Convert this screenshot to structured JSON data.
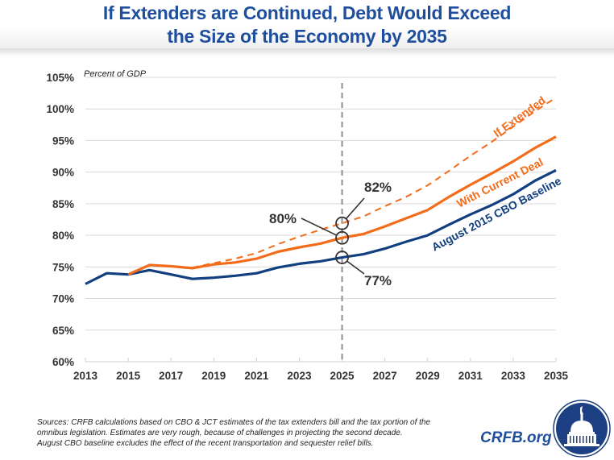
{
  "title": {
    "line1": "If Extenders are Continued, Debt Would Exceed",
    "line2": "the Size of the Economy by 2035"
  },
  "colors": {
    "baseline": "#123f80",
    "current_deal": "#f26c1a",
    "if_extended": "#f26c1a",
    "title": "#1f4e9c",
    "grid": "#d9d9d9",
    "vline": "#8c8c8c"
  },
  "chart_data": {
    "type": "line",
    "title": "If Extenders are Continued, Debt Would Exceed the Size of the Economy by 2035",
    "ylabel": "Percent of GDP",
    "xlabel": "",
    "ylim": [
      60,
      105
    ],
    "yticks": [
      60,
      65,
      70,
      75,
      80,
      85,
      90,
      95,
      100,
      105
    ],
    "ytick_labels": [
      "60%",
      "65%",
      "70%",
      "75%",
      "80%",
      "85%",
      "90%",
      "95%",
      "100%",
      "105%"
    ],
    "xlim": [
      2013,
      2035
    ],
    "xticks": [
      2013,
      2015,
      2017,
      2019,
      2021,
      2023,
      2025,
      2027,
      2029,
      2031,
      2033,
      2035
    ],
    "xtick_labels": [
      "2013",
      "2015",
      "2017",
      "2019",
      "2021",
      "2023",
      "2025",
      "2027",
      "2029",
      "2031",
      "2033",
      "2035"
    ],
    "grid": "horizontal",
    "legend": "inline labels",
    "series": [
      {
        "name": "August 2015 CBO Baseline",
        "style": "solid",
        "x": [
          2013,
          2014,
          2015,
          2016,
          2017,
          2018,
          2019,
          2020,
          2021,
          2022,
          2023,
          2024,
          2025,
          2026,
          2027,
          2028,
          2029,
          2030,
          2031,
          2032,
          2033,
          2034,
          2035
        ],
        "values": [
          72.3,
          74.0,
          73.8,
          74.5,
          73.8,
          73.1,
          73.3,
          73.6,
          74.0,
          74.9,
          75.5,
          75.9,
          76.5,
          77.0,
          77.9,
          79.0,
          80.0,
          81.7,
          83.3,
          84.8,
          86.5,
          88.6,
          90.3
        ]
      },
      {
        "name": "With Current Deal",
        "style": "solid",
        "x": [
          2015,
          2016,
          2017,
          2018,
          2019,
          2020,
          2021,
          2022,
          2023,
          2024,
          2025,
          2026,
          2027,
          2028,
          2029,
          2030,
          2031,
          2032,
          2033,
          2034,
          2035
        ],
        "values": [
          73.8,
          75.3,
          75.1,
          74.8,
          75.4,
          75.7,
          76.3,
          77.4,
          78.1,
          78.7,
          79.6,
          80.2,
          81.4,
          82.7,
          84.0,
          86.1,
          88.0,
          89.8,
          91.7,
          93.8,
          95.6
        ]
      },
      {
        "name": "If Extended",
        "style": "dashed",
        "x": [
          2018,
          2019,
          2020,
          2021,
          2022,
          2023,
          2024,
          2025,
          2026,
          2027,
          2028,
          2029,
          2030,
          2031,
          2032,
          2033,
          2034,
          2035
        ],
        "values": [
          74.9,
          75.6,
          76.3,
          77.2,
          78.6,
          79.8,
          80.9,
          81.9,
          83.0,
          84.6,
          86.1,
          87.9,
          90.2,
          92.6,
          94.8,
          97.2,
          99.6,
          101.8
        ]
      }
    ],
    "reference_line": {
      "x": 2025,
      "style": "dashed"
    },
    "annotations": [
      {
        "text": "82%",
        "x": 2025,
        "y": 81.9,
        "series": "If Extended"
      },
      {
        "text": "80%",
        "x": 2025,
        "y": 79.6,
        "series": "With Current Deal"
      },
      {
        "text": "77%",
        "x": 2025,
        "y": 76.5,
        "series": "August 2015 CBO Baseline"
      }
    ]
  },
  "source": {
    "line1": "Sources: CRFB calculations based on CBO & JCT estimates of the tax extenders bill and the tax portion of the",
    "line2": "omnibus legislation. Estimates are very rough, because of challenges in projecting the second decade.",
    "line3": "August CBO baseline excludes the effect of the recent transportation and sequester relief bills."
  },
  "brand": {
    "text": "CRFB.org",
    "logo_icon": "capitol-dome-seal-icon"
  }
}
